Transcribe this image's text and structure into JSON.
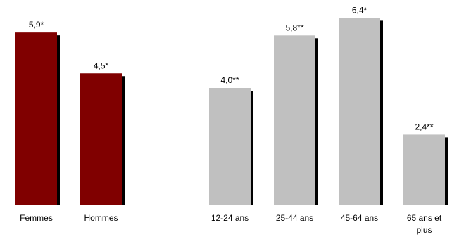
{
  "chart_data": {
    "type": "bar",
    "title": "",
    "xlabel": "",
    "ylabel": "",
    "ylim": [
      0,
      7
    ],
    "grid": false,
    "bars": [
      {
        "category": [
          "Femmes"
        ],
        "value": 5.9,
        "label": "5,9*",
        "color": "#800000"
      },
      {
        "category": [
          "Hommes"
        ],
        "value": 4.5,
        "label": "4,5*",
        "color": "#800000"
      },
      {
        "category": [
          "12-24 ans"
        ],
        "value": 4.0,
        "label": "4,0**",
        "color": "#c0c0c0"
      },
      {
        "category": [
          "25-44 ans"
        ],
        "value": 5.8,
        "label": "5,8**",
        "color": "#c0c0c0"
      },
      {
        "category": [
          "45-64 ans"
        ],
        "value": 6.4,
        "label": "6,4*",
        "color": "#c0c0c0"
      },
      {
        "category": [
          "65 ans et",
          "plus"
        ],
        "value": 2.4,
        "label": "2,4**",
        "color": "#c0c0c0"
      }
    ]
  }
}
